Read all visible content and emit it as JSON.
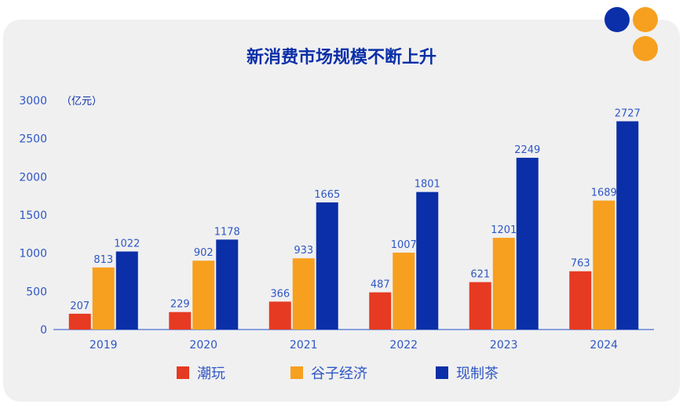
{
  "title": "新消费市场规模不断上升",
  "unit_label": "（亿元）",
  "colors": {
    "card_bg": "#f0f0f0",
    "dot_blue": "#0a2fa8",
    "dot_orange": "#f7a01f"
  },
  "chart_data": {
    "type": "bar",
    "title": "新消费市场规模不断上升",
    "xlabel": "",
    "ylabel": "（亿元）",
    "ylim": [
      0,
      3000
    ],
    "yticks": [
      "0",
      "500",
      "1000",
      "1500",
      "2000",
      "2500",
      "3000"
    ],
    "categories": [
      "2019",
      "2020",
      "2021",
      "2022",
      "2023",
      "2024"
    ],
    "series": [
      {
        "name": "潮玩",
        "color": "#e63a22",
        "values": [
          207,
          229,
          366,
          487,
          621,
          763
        ]
      },
      {
        "name": "谷子经济",
        "color": "#f7a01f",
        "values": [
          813,
          902,
          933,
          1007,
          1201,
          1689
        ]
      },
      {
        "name": "现制茶",
        "color": "#0a2fa8",
        "values": [
          1022,
          1178,
          1665,
          1801,
          2249,
          2727
        ]
      }
    ],
    "grid": false,
    "legend_position": "bottom"
  }
}
